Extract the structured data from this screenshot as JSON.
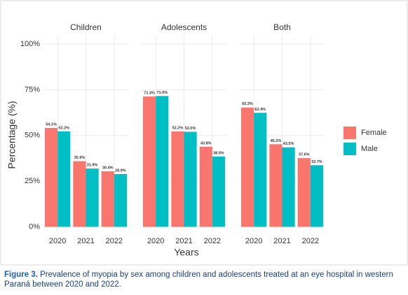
{
  "chart_data": {
    "type": "bar",
    "ylabel": "Percentage (%)",
    "xlabel": "Years",
    "categories": [
      "2020",
      "2021",
      "2022"
    ],
    "series": [
      {
        "name": "Female",
        "color": "#f8766d"
      },
      {
        "name": "Male",
        "color": "#00bfc4"
      }
    ],
    "facets": [
      {
        "title": "Children",
        "series": [
          {
            "values": [
              54.1,
              35.9,
              30.4
            ],
            "value_labels": [
              "54.1%",
              "35.9%",
              "30.4%"
            ]
          },
          {
            "values": [
              52.2,
              31.9,
              28.9
            ],
            "value_labels": [
              "52.2%",
              "31.9%",
              "28.9%"
            ]
          }
        ]
      },
      {
        "title": "Adolescents",
        "series": [
          {
            "values": [
              71.3,
              52.2,
              43.8
            ],
            "value_labels": [
              "71.3%",
              "52.2%",
              "43.8%"
            ]
          },
          {
            "values": [
              71.6,
              52.0,
              38.5
            ],
            "value_labels": [
              "71.6%",
              "52.0%",
              "38.5%"
            ]
          }
        ]
      },
      {
        "title": "Both",
        "series": [
          {
            "values": [
              65.3,
              45.2,
              37.6
            ],
            "value_labels": [
              "65.3%",
              "45.2%",
              "37.6%"
            ]
          },
          {
            "values": [
              62.4,
              43.5,
              33.7
            ],
            "value_labels": [
              "62.4%",
              "43.5%",
              "33.7%"
            ]
          }
        ]
      }
    ],
    "ylim": [
      -2.5,
      105
    ],
    "yticks": [
      {
        "value": 0,
        "label": "0%"
      },
      {
        "value": 25,
        "label": "25%"
      },
      {
        "value": 50,
        "label": "50%"
      },
      {
        "value": 75,
        "label": "75%"
      },
      {
        "value": 100,
        "label": "100%"
      }
    ],
    "grid": true
  },
  "caption": {
    "label": "Figure 3.",
    "text": "Prevalence of myopia by sex among children and adolescents treated at an eye hospital in western Paraná between 2020 and 2022."
  }
}
